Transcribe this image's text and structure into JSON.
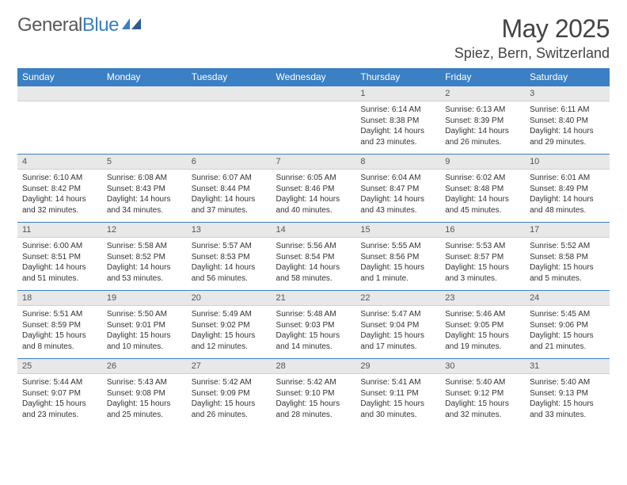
{
  "logo": {
    "text1": "General",
    "text2": "Blue"
  },
  "title": "May 2025",
  "location": "Spiez, Bern, Switzerland",
  "colors": {
    "header_bg": "#3b7fc4",
    "header_text": "#ffffff",
    "daynum_bg": "#e8e8e8",
    "border": "#3b7fc4",
    "text": "#333333",
    "logo_gray": "#5a5a5a",
    "logo_blue": "#3b7fc4"
  },
  "weekdays": [
    "Sunday",
    "Monday",
    "Tuesday",
    "Wednesday",
    "Thursday",
    "Friday",
    "Saturday"
  ],
  "weeks": [
    [
      null,
      null,
      null,
      null,
      {
        "n": "1",
        "sr": "6:14 AM",
        "ss": "8:38 PM",
        "dl": "14 hours and 23 minutes."
      },
      {
        "n": "2",
        "sr": "6:13 AM",
        "ss": "8:39 PM",
        "dl": "14 hours and 26 minutes."
      },
      {
        "n": "3",
        "sr": "6:11 AM",
        "ss": "8:40 PM",
        "dl": "14 hours and 29 minutes."
      }
    ],
    [
      {
        "n": "4",
        "sr": "6:10 AM",
        "ss": "8:42 PM",
        "dl": "14 hours and 32 minutes."
      },
      {
        "n": "5",
        "sr": "6:08 AM",
        "ss": "8:43 PM",
        "dl": "14 hours and 34 minutes."
      },
      {
        "n": "6",
        "sr": "6:07 AM",
        "ss": "8:44 PM",
        "dl": "14 hours and 37 minutes."
      },
      {
        "n": "7",
        "sr": "6:05 AM",
        "ss": "8:46 PM",
        "dl": "14 hours and 40 minutes."
      },
      {
        "n": "8",
        "sr": "6:04 AM",
        "ss": "8:47 PM",
        "dl": "14 hours and 43 minutes."
      },
      {
        "n": "9",
        "sr": "6:02 AM",
        "ss": "8:48 PM",
        "dl": "14 hours and 45 minutes."
      },
      {
        "n": "10",
        "sr": "6:01 AM",
        "ss": "8:49 PM",
        "dl": "14 hours and 48 minutes."
      }
    ],
    [
      {
        "n": "11",
        "sr": "6:00 AM",
        "ss": "8:51 PM",
        "dl": "14 hours and 51 minutes."
      },
      {
        "n": "12",
        "sr": "5:58 AM",
        "ss": "8:52 PM",
        "dl": "14 hours and 53 minutes."
      },
      {
        "n": "13",
        "sr": "5:57 AM",
        "ss": "8:53 PM",
        "dl": "14 hours and 56 minutes."
      },
      {
        "n": "14",
        "sr": "5:56 AM",
        "ss": "8:54 PM",
        "dl": "14 hours and 58 minutes."
      },
      {
        "n": "15",
        "sr": "5:55 AM",
        "ss": "8:56 PM",
        "dl": "15 hours and 1 minute."
      },
      {
        "n": "16",
        "sr": "5:53 AM",
        "ss": "8:57 PM",
        "dl": "15 hours and 3 minutes."
      },
      {
        "n": "17",
        "sr": "5:52 AM",
        "ss": "8:58 PM",
        "dl": "15 hours and 5 minutes."
      }
    ],
    [
      {
        "n": "18",
        "sr": "5:51 AM",
        "ss": "8:59 PM",
        "dl": "15 hours and 8 minutes."
      },
      {
        "n": "19",
        "sr": "5:50 AM",
        "ss": "9:01 PM",
        "dl": "15 hours and 10 minutes."
      },
      {
        "n": "20",
        "sr": "5:49 AM",
        "ss": "9:02 PM",
        "dl": "15 hours and 12 minutes."
      },
      {
        "n": "21",
        "sr": "5:48 AM",
        "ss": "9:03 PM",
        "dl": "15 hours and 14 minutes."
      },
      {
        "n": "22",
        "sr": "5:47 AM",
        "ss": "9:04 PM",
        "dl": "15 hours and 17 minutes."
      },
      {
        "n": "23",
        "sr": "5:46 AM",
        "ss": "9:05 PM",
        "dl": "15 hours and 19 minutes."
      },
      {
        "n": "24",
        "sr": "5:45 AM",
        "ss": "9:06 PM",
        "dl": "15 hours and 21 minutes."
      }
    ],
    [
      {
        "n": "25",
        "sr": "5:44 AM",
        "ss": "9:07 PM",
        "dl": "15 hours and 23 minutes."
      },
      {
        "n": "26",
        "sr": "5:43 AM",
        "ss": "9:08 PM",
        "dl": "15 hours and 25 minutes."
      },
      {
        "n": "27",
        "sr": "5:42 AM",
        "ss": "9:09 PM",
        "dl": "15 hours and 26 minutes."
      },
      {
        "n": "28",
        "sr": "5:42 AM",
        "ss": "9:10 PM",
        "dl": "15 hours and 28 minutes."
      },
      {
        "n": "29",
        "sr": "5:41 AM",
        "ss": "9:11 PM",
        "dl": "15 hours and 30 minutes."
      },
      {
        "n": "30",
        "sr": "5:40 AM",
        "ss": "9:12 PM",
        "dl": "15 hours and 32 minutes."
      },
      {
        "n": "31",
        "sr": "5:40 AM",
        "ss": "9:13 PM",
        "dl": "15 hours and 33 minutes."
      }
    ]
  ],
  "labels": {
    "sunrise": "Sunrise: ",
    "sunset": "Sunset: ",
    "daylight": "Daylight: "
  }
}
